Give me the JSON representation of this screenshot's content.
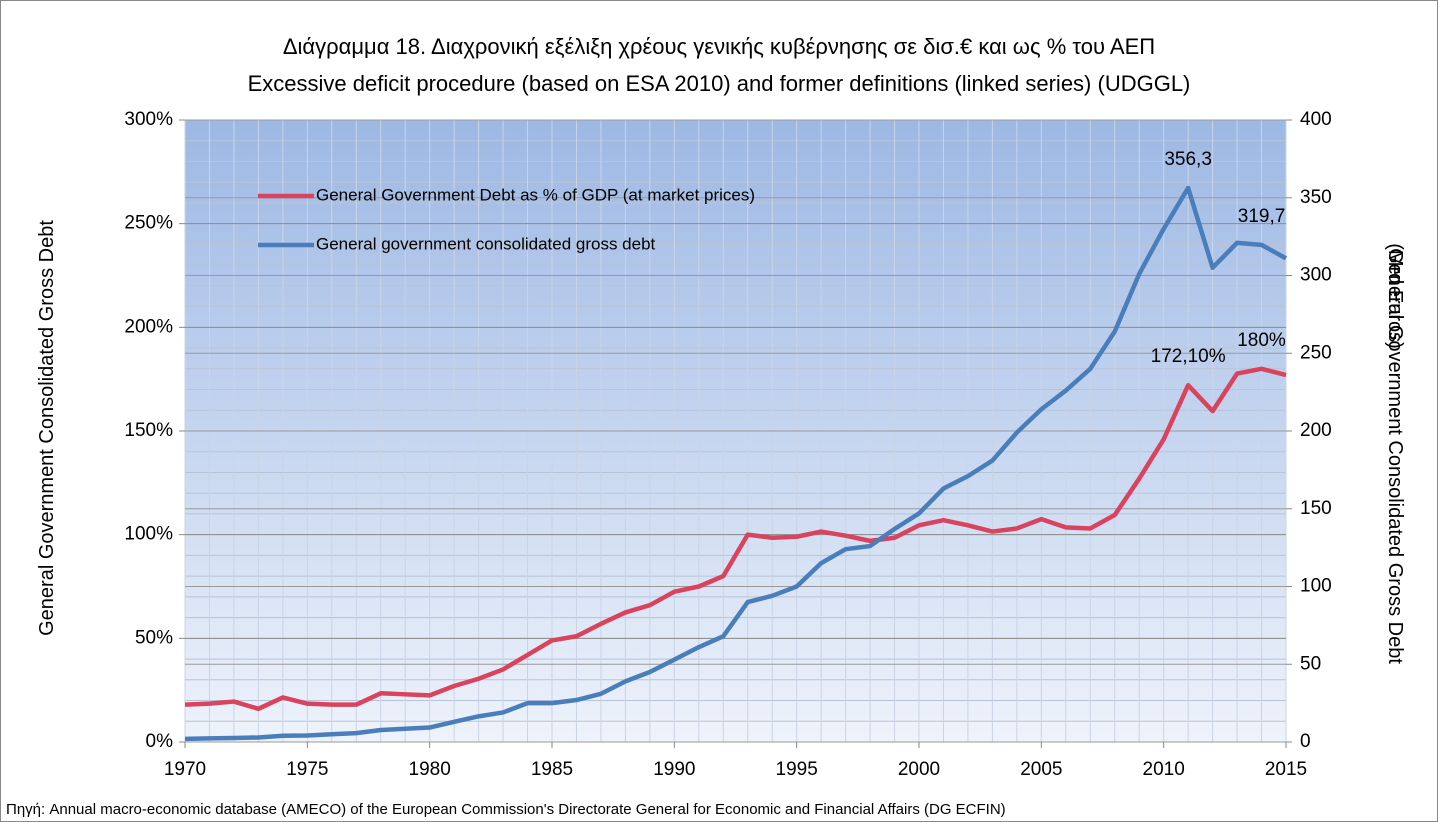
{
  "chart_data": {
    "type": "line",
    "title": "Διάγραμμα 18. Διαχρονική εξέλιξη χρέους γενικής κυβέρνησης σε δισ.€ και ως % του ΑΕΠ",
    "subtitle": "Excessive deficit procedure (based on ESA 2010) and former definitions (linked series) (UDGGL)",
    "y_label": "General  Government Consolidated  Gross Debt",
    "y2_label": "General  Government Consolidated  Gross Debt",
    "y2_unit": "(Mrd Euros)",
    "source": "Πηγή: Annual macro-economic database (AMECO) of the European Commission's Directorate General for Economic and Financial Affairs (DG ECFIN)",
    "x": [
      1970,
      1971,
      1972,
      1973,
      1974,
      1975,
      1976,
      1977,
      1978,
      1979,
      1980,
      1981,
      1982,
      1983,
      1984,
      1985,
      1986,
      1987,
      1988,
      1989,
      1990,
      1991,
      1992,
      1993,
      1994,
      1995,
      1996,
      1997,
      1998,
      1999,
      2000,
      2001,
      2002,
      2003,
      2004,
      2005,
      2006,
      2007,
      2008,
      2009,
      2010,
      2011,
      2012,
      2013,
      2014,
      2015
    ],
    "xlim": [
      1970,
      2015
    ],
    "xticks": [
      1970,
      1975,
      1980,
      1985,
      1990,
      1995,
      2000,
      2005,
      2010,
      2015
    ],
    "ylim": [
      0,
      300
    ],
    "yticks": [
      {
        "value": 0,
        "label": "0%"
      },
      {
        "value": 50,
        "label": "50%"
      },
      {
        "value": 100,
        "label": "100%"
      },
      {
        "value": 150,
        "label": "150%"
      },
      {
        "value": 200,
        "label": "200%"
      },
      {
        "value": 250,
        "label": "250%"
      },
      {
        "value": 300,
        "label": "300%"
      }
    ],
    "y2lim": [
      0,
      400
    ],
    "y2ticks": [
      0,
      50,
      100,
      150,
      200,
      250,
      300,
      350,
      400
    ],
    "grid": true,
    "legend": "upper left",
    "series": [
      {
        "name": "General Government Debt  as % of GDP (at market prices)",
        "color": "#d9435e",
        "values": [
          18,
          18.5,
          19.5,
          16,
          21.5,
          18.5,
          18,
          18,
          23.5,
          23,
          22.5,
          27,
          30.5,
          35,
          42,
          49,
          51,
          57,
          62.5,
          66,
          72.5,
          75,
          80,
          100,
          98.5,
          99,
          101.5,
          99.5,
          97,
          98.5,
          104.5,
          107,
          104.5,
          101.5,
          103,
          107.5,
          103.5,
          103,
          109.5,
          127,
          146,
          172.1,
          159.6,
          177.7,
          180,
          177
        ],
        "value_labels": [
          null,
          null,
          null,
          null,
          null,
          null,
          null,
          null,
          null,
          null,
          null,
          null,
          null,
          null,
          null,
          null,
          null,
          null,
          null,
          null,
          null,
          null,
          null,
          null,
          null,
          null,
          null,
          null,
          null,
          null,
          null,
          null,
          null,
          null,
          null,
          null,
          null,
          null,
          null,
          null,
          null,
          "172,10%",
          null,
          null,
          "180%",
          null
        ]
      },
      {
        "name": "General government consolidated gross debt",
        "color": "#4a7ebb",
        "axis": "y2",
        "values": [
          2,
          2.3,
          2.6,
          2.9,
          4,
          4.2,
          5,
          5.7,
          7.7,
          8.5,
          9.3,
          13,
          16.5,
          19,
          25,
          25,
          27,
          31,
          39,
          45,
          53,
          61,
          68,
          90,
          94,
          100,
          115,
          124,
          126,
          137,
          147,
          163,
          171,
          181,
          199,
          214,
          226,
          240,
          264,
          301,
          330,
          356.3,
          305,
          321,
          319.7,
          311
        ],
        "value_labels": [
          null,
          null,
          null,
          null,
          null,
          null,
          null,
          null,
          null,
          null,
          null,
          null,
          null,
          null,
          null,
          null,
          null,
          null,
          null,
          null,
          null,
          null,
          null,
          null,
          null,
          null,
          null,
          null,
          null,
          null,
          null,
          null,
          null,
          null,
          null,
          null,
          null,
          null,
          null,
          null,
          null,
          "356,3",
          null,
          null,
          "319,7",
          null
        ]
      }
    ]
  }
}
